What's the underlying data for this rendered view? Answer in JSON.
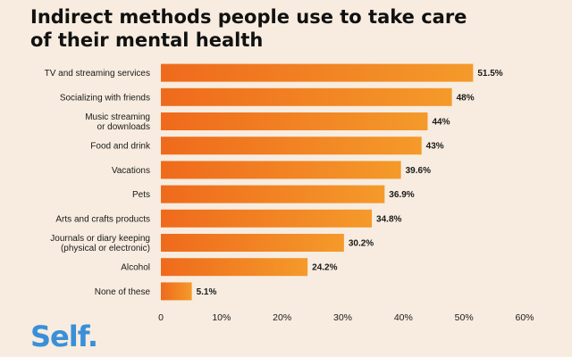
{
  "title_lines": [
    "Indirect methods people use to take care",
    "of their mental health"
  ],
  "brand": "Self.",
  "colors": {
    "background": "#f7ecdf",
    "bar_left": "#ef6a1c",
    "bar_right": "#f49a2a",
    "text": "#111111",
    "brand": "#3a8fd8"
  },
  "chart_data": {
    "type": "bar",
    "orientation": "horizontal",
    "title": "Indirect methods people use to take care of their mental health",
    "categories": [
      "TV and streaming services",
      "Socializing with friends",
      "Music streaming\nor downloads",
      "Food and drink",
      "Vacations",
      "Pets",
      "Arts and crafts products",
      "Journals or diary keeping\n(physical or electronic)",
      "Alcohol",
      "None of these"
    ],
    "values": [
      51.5,
      48,
      44,
      43,
      39.6,
      36.9,
      34.8,
      30.2,
      24.2,
      5.1
    ],
    "value_labels": [
      "51.5%",
      "48%",
      "44%",
      "43%",
      "39.6%",
      "36.9%",
      "34.8%",
      "30.2%",
      "24.2%",
      "5.1%"
    ],
    "xlim": [
      0,
      60
    ],
    "ticks": [
      0,
      10,
      20,
      30,
      40,
      50,
      60
    ],
    "tick_labels": [
      "0",
      "10%",
      "20%",
      "30%",
      "40%",
      "50%",
      "60%"
    ],
    "xlabel": "",
    "ylabel": "",
    "grid": false,
    "legend": "none"
  }
}
